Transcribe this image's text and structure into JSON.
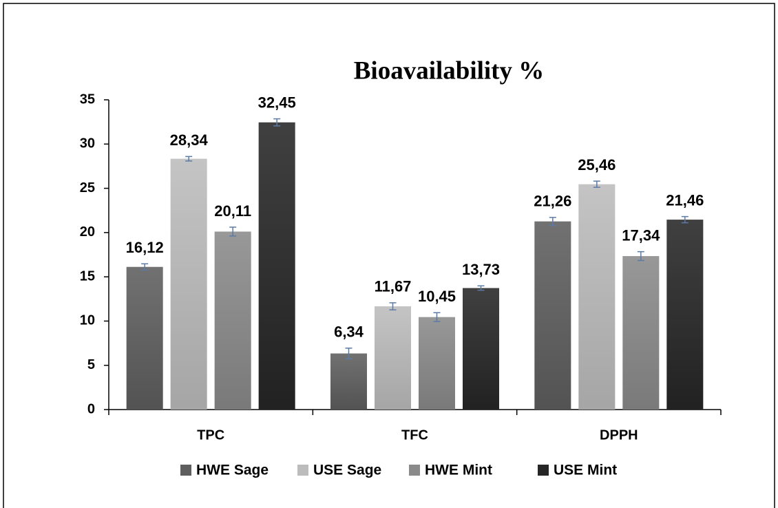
{
  "chart_data": {
    "type": "bar",
    "title": "Bioavailability %",
    "categories": [
      "TPC",
      "TFC",
      "DPPH"
    ],
    "series": [
      {
        "name": "HWE Sage",
        "color": "#5e5e5e",
        "values": [
          16.12,
          6.34,
          21.26
        ],
        "value_labels": [
          "16,12",
          "6,34",
          "21,26"
        ],
        "errors": [
          0.35,
          0.6,
          0.45
        ]
      },
      {
        "name": "USE Sage",
        "color": "#bcbcbc",
        "values": [
          28.34,
          11.67,
          25.46
        ],
        "value_labels": [
          "28,34",
          "11,67",
          "25,46"
        ],
        "errors": [
          0.25,
          0.4,
          0.35
        ]
      },
      {
        "name": "HWE Mint",
        "color": "#8a8a8a",
        "values": [
          20.11,
          10.45,
          17.34
        ],
        "value_labels": [
          "20,11",
          "10,45",
          "17,34"
        ],
        "errors": [
          0.5,
          0.5,
          0.5
        ]
      },
      {
        "name": "USE Mint",
        "color": "#262626",
        "values": [
          32.45,
          13.73,
          21.46
        ],
        "value_labels": [
          "32,45",
          "13,73",
          "21,46"
        ],
        "errors": [
          0.4,
          0.25,
          0.35
        ]
      }
    ],
    "error_color": "#5b7ba6",
    "ylim": [
      0,
      35
    ],
    "yticks": [
      0,
      5,
      10,
      15,
      20,
      25,
      30,
      35
    ],
    "grid": false,
    "legend": "bottom"
  }
}
